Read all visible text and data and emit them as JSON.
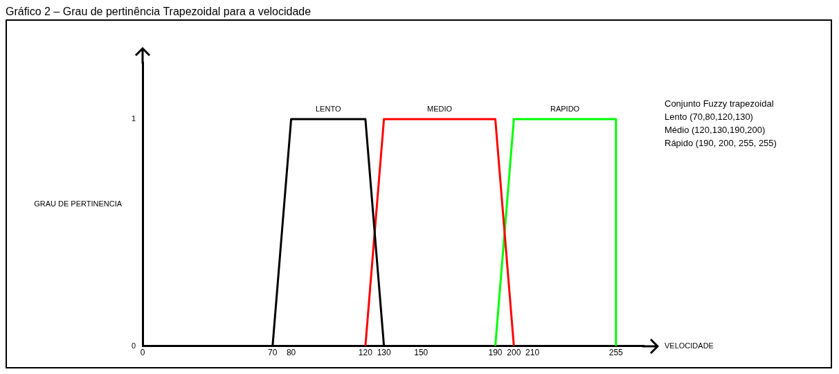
{
  "chart_data": {
    "type": "line",
    "title": "Gráfico 2 – Grau de pertinência Trapezoidal para a velocidade",
    "xlabel": "VELOCIDADE",
    "ylabel": "GRAU DE PERTINENCIA",
    "series": [
      {
        "name": "LENTO",
        "color": "#000000",
        "x": [
          70,
          80,
          120,
          130
        ],
        "values": [
          0,
          1,
          1,
          0
        ]
      },
      {
        "name": "MEDIO",
        "color": "#ff0000",
        "x": [
          120,
          130,
          190,
          200
        ],
        "values": [
          0,
          1,
          1,
          0
        ]
      },
      {
        "name": "RAPIDO",
        "color": "#00ff00",
        "x": [
          190,
          200,
          255,
          255
        ],
        "values": [
          0,
          1,
          1,
          0
        ]
      }
    ],
    "xlim": [
      0,
      270
    ],
    "xticks": [
      0,
      70,
      80,
      120,
      130,
      150,
      190,
      200,
      210,
      255
    ],
    "ylim": [
      0,
      1.25
    ],
    "yticks": [
      0,
      1
    ],
    "grid": false,
    "legend": false,
    "marker": "none",
    "line_style": "solid",
    "annotations": [
      "Conjunto Fuzzy trapezoidal",
      "Lento (70,80,120,130)",
      "Médio (120,130,190,200)",
      "Rápido (190, 200, 255, 255)"
    ]
  }
}
